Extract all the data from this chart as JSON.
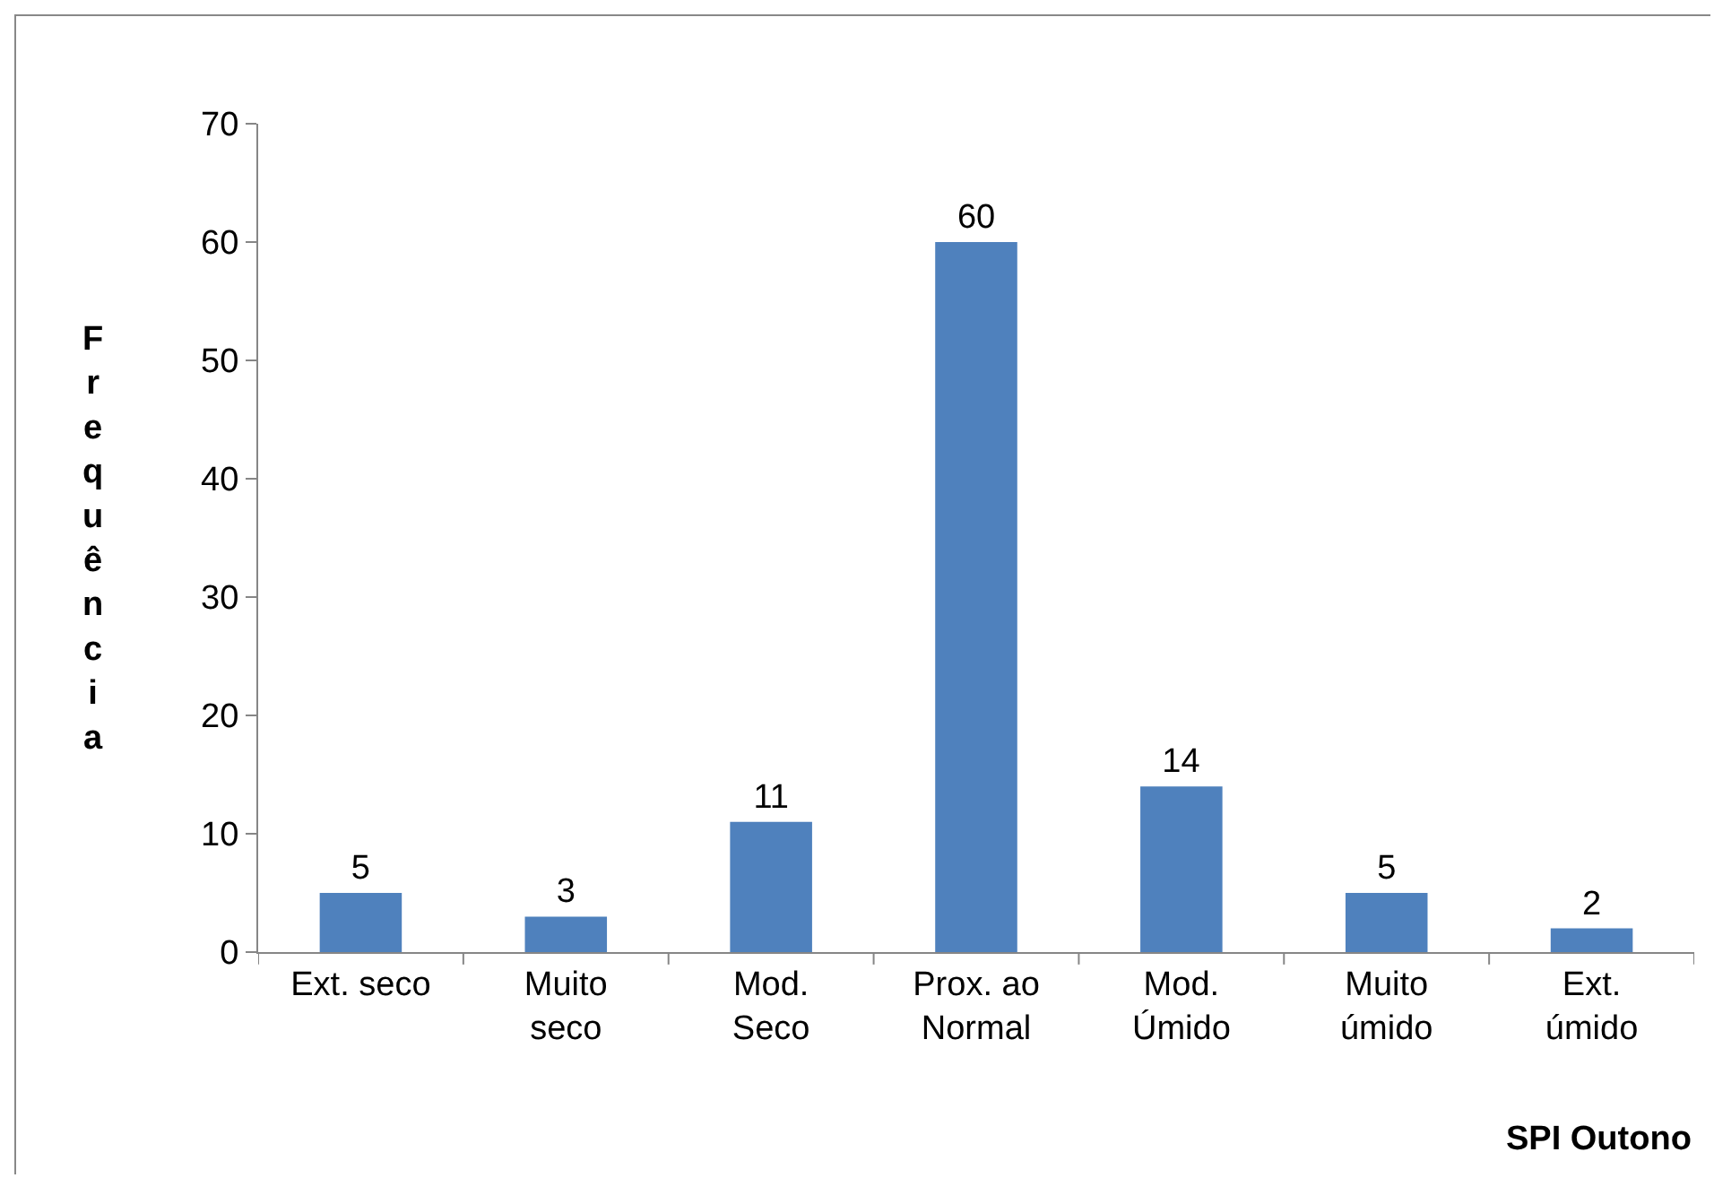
{
  "chart_data": {
    "type": "bar",
    "categories": [
      "Ext. seco",
      "Muito\nseco",
      "Mod.\nSeco",
      "Prox. ao\nNormal",
      "Mod.\nÚmido",
      "Muito\númido",
      "Ext.\númido"
    ],
    "values": [
      5,
      3,
      11,
      60,
      14,
      5,
      2
    ],
    "color": "#4f81bd",
    "xlabel": "SPI Outono",
    "ylabel": "Frequência",
    "ylim": [
      0,
      70
    ],
    "yticks": [
      0,
      10,
      20,
      30,
      40,
      50,
      60,
      70
    ],
    "grid": false,
    "legend": false,
    "data_labels": true
  }
}
